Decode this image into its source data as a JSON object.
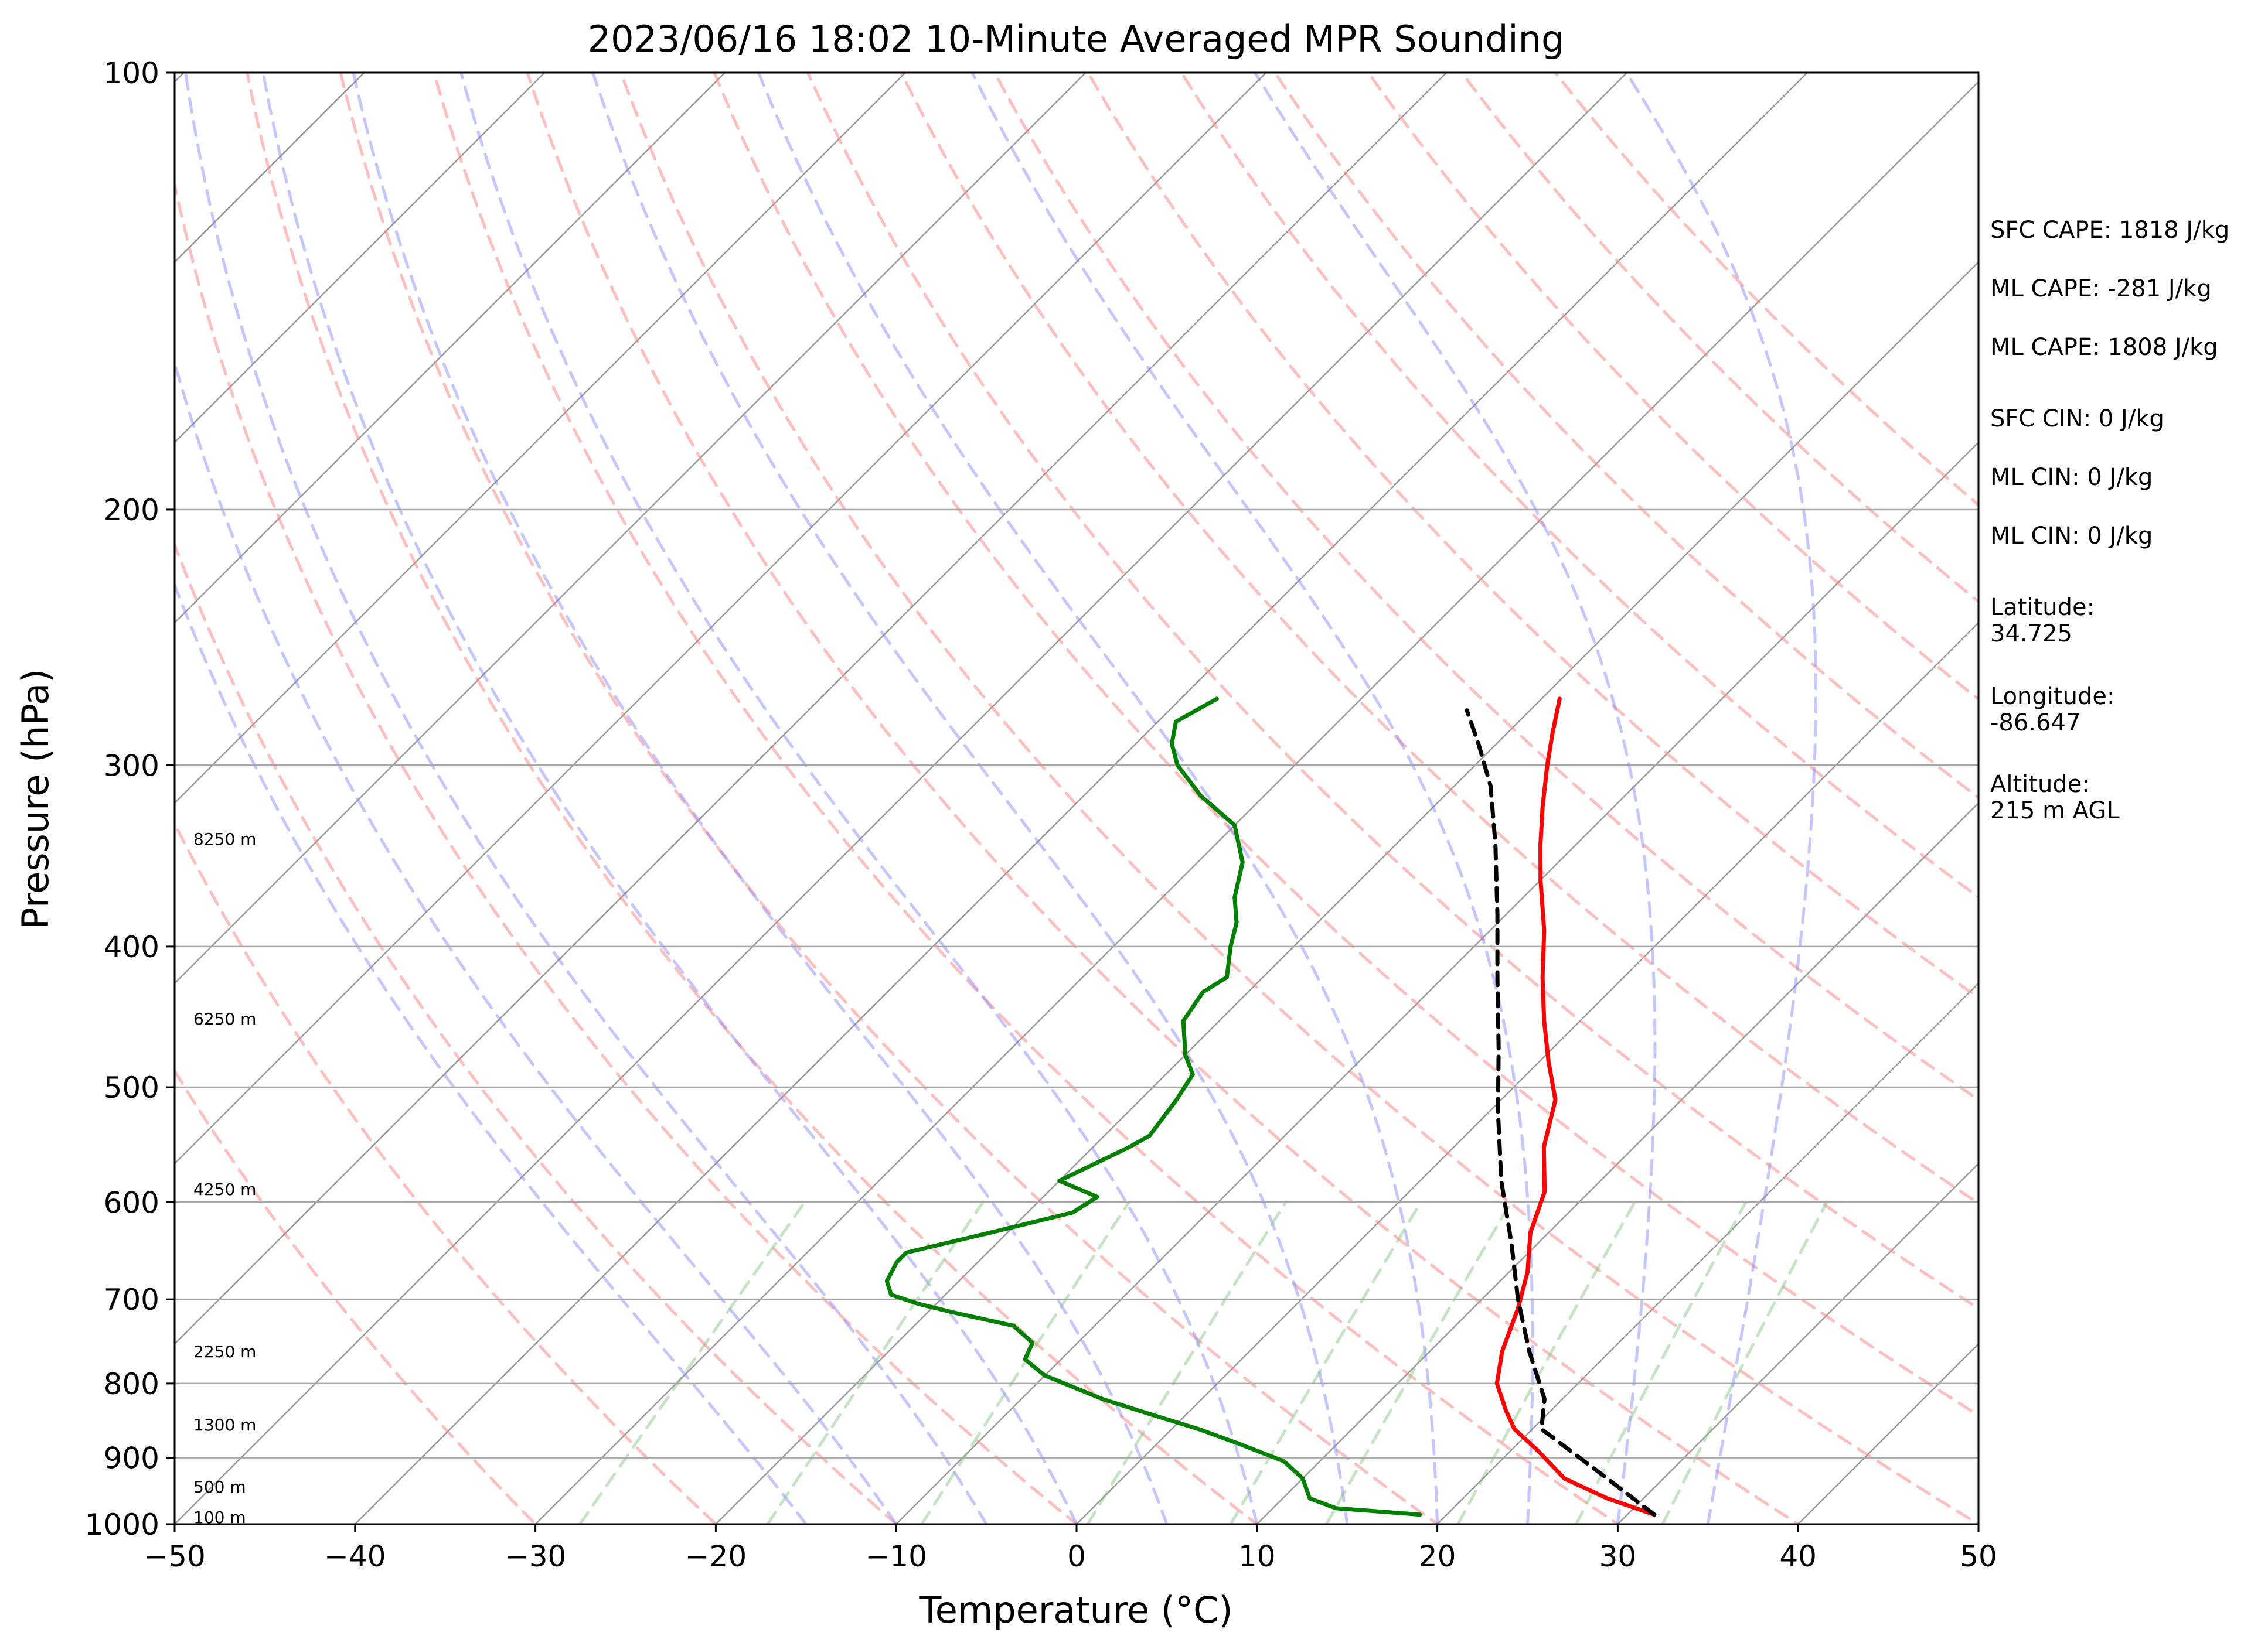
{
  "chart_data": {
    "type": "line",
    "subtype": "skew-t-log-p",
    "title": "2023/06/16 18:02 10-Minute Averaged MPR Sounding",
    "xlabel": "Temperature (°C)",
    "ylabel": "Pressure (hPa)",
    "xlim": [
      -50,
      50
    ],
    "ylim": [
      1000,
      100
    ],
    "y_scale": "log",
    "grid": true,
    "x_ticks": [
      "−50",
      "−40",
      "−30",
      "−20",
      "−10",
      "0",
      "10",
      "20",
      "30",
      "40",
      "50"
    ],
    "y_ticks": [
      "100",
      "200",
      "300",
      "400",
      "500",
      "600",
      "700",
      "800",
      "900",
      "1000"
    ],
    "altitude_labels": [
      "8250 m",
      "6250 m",
      "4250 m",
      "2250 m",
      "1300 m",
      "500 m",
      "100 m"
    ],
    "series": [
      {
        "role": "temperature",
        "color": "#ff0000",
        "style": "solid",
        "points": [
          [
            31.5,
            985
          ],
          [
            28.0,
            960
          ],
          [
            24.5,
            930
          ],
          [
            21.5,
            890
          ],
          [
            19.0,
            860
          ],
          [
            17.5,
            835
          ],
          [
            15.5,
            800
          ],
          [
            14.0,
            760
          ],
          [
            12.5,
            710
          ],
          [
            11.0,
            670
          ],
          [
            9.0,
            630
          ],
          [
            7.5,
            590
          ],
          [
            5.0,
            550
          ],
          [
            3.0,
            510
          ],
          [
            0.5,
            480
          ],
          [
            -2.0,
            450
          ],
          [
            -4.5,
            420
          ],
          [
            -7.0,
            390
          ],
          [
            -10.0,
            360
          ],
          [
            -12.0,
            340
          ],
          [
            -14.0,
            320
          ],
          [
            -16.0,
            300
          ],
          [
            -17.5,
            285
          ],
          [
            -19.0,
            270
          ]
        ]
      },
      {
        "role": "dewpoint",
        "color": "#007f00",
        "style": "solid",
        "points": [
          [
            18.5,
            985
          ],
          [
            13.5,
            975
          ],
          [
            11.5,
            960
          ],
          [
            10.0,
            930
          ],
          [
            8.0,
            905
          ],
          [
            4.5,
            880
          ],
          [
            1.5,
            860
          ],
          [
            -2.0,
            840
          ],
          [
            -5.5,
            820
          ],
          [
            -10.0,
            790
          ],
          [
            -12.0,
            770
          ],
          [
            -12.5,
            750
          ],
          [
            -14.5,
            730
          ],
          [
            -18.5,
            715
          ],
          [
            -21.0,
            705
          ],
          [
            -23.0,
            695
          ],
          [
            -24.0,
            680
          ],
          [
            -24.5,
            660
          ],
          [
            -24.5,
            650
          ],
          [
            -21.0,
            630
          ],
          [
            -17.5,
            610
          ],
          [
            -17.0,
            595
          ],
          [
            -20.0,
            580
          ],
          [
            -18.0,
            550
          ],
          [
            -17.5,
            540
          ],
          [
            -18.0,
            510
          ],
          [
            -18.5,
            490
          ],
          [
            -20.0,
            475
          ],
          [
            -22.0,
            450
          ],
          [
            -22.5,
            430
          ],
          [
            -22.0,
            420
          ],
          [
            -23.5,
            400
          ],
          [
            -24.5,
            385
          ],
          [
            -26.0,
            370
          ],
          [
            -27.5,
            350
          ],
          [
            -30.0,
            330
          ],
          [
            -33.5,
            315
          ],
          [
            -36.5,
            300
          ],
          [
            -38.0,
            290
          ],
          [
            -39.0,
            280
          ],
          [
            -38.0,
            270
          ]
        ]
      },
      {
        "role": "parcel",
        "color": "#000000",
        "style": "dashed",
        "points": [
          [
            31.5,
            985
          ],
          [
            26.0,
            920
          ],
          [
            20.5,
            860
          ],
          [
            19.0,
            820
          ],
          [
            15.5,
            760
          ],
          [
            12.0,
            700
          ],
          [
            8.5,
            640
          ],
          [
            4.5,
            580
          ],
          [
            0.5,
            520
          ],
          [
            -3.0,
            470
          ],
          [
            -7.0,
            420
          ],
          [
            -10.5,
            380
          ],
          [
            -14.5,
            340
          ],
          [
            -18.0,
            310
          ],
          [
            -21.0,
            290
          ],
          [
            -23.5,
            275
          ]
        ]
      }
    ],
    "stats": [
      "SFC CAPE: 1818 J/kg",
      "ML CAPE: -281 J/kg",
      "ML CAPE: 1808 J/kg",
      "SFC CIN: 0 J/kg",
      "ML CIN: 0 J/kg",
      "ML CIN: 0 J/kg"
    ],
    "location": [
      {
        "label": "Latitude:",
        "value": "34.725"
      },
      {
        "label": "Longitude:",
        "value": "-86.647"
      },
      {
        "label": "Altitude:",
        "value": "215 m AGL"
      }
    ],
    "background_lines": {
      "isotherms": [
        -140,
        -130,
        -120,
        -110,
        -100,
        -90,
        -80,
        -70,
        -60,
        -50,
        -40,
        -30,
        -20,
        -10,
        0,
        10,
        20,
        30,
        40,
        50
      ],
      "dry_adiabats_theta_c": [
        -30,
        -20,
        -10,
        0,
        10,
        20,
        30,
        40,
        50,
        60,
        70,
        80,
        90,
        100,
        110,
        120,
        130,
        140,
        150
      ],
      "moist_adiabats_c": [
        -15,
        -10,
        -5,
        0,
        5,
        10,
        15,
        20,
        25,
        30,
        35
      ],
      "mixing_ratio_g_kg": [
        0.4,
        1,
        2,
        4,
        7,
        10,
        16,
        24,
        32
      ],
      "colors": {
        "isotherm": "#9a9a9a",
        "dry": "#ff8080",
        "moist": "#8080ff",
        "mixing": "#80c080"
      }
    }
  }
}
